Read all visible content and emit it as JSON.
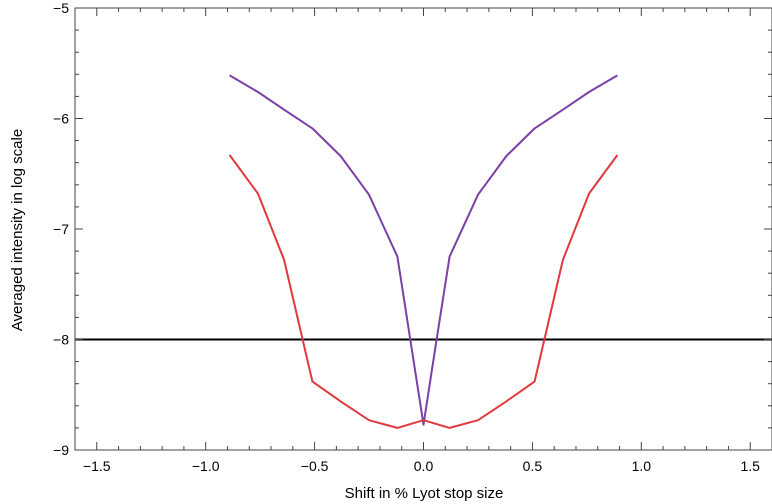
{
  "chart_data": {
    "type": "line",
    "title": "",
    "xlabel": "Shift in % Lyot stop size",
    "ylabel": "Averaged intensity in log scale",
    "xlim": [
      -1.6,
      1.6
    ],
    "ylim": [
      -9,
      -5
    ],
    "grid": false,
    "legend": "none",
    "x_ticks": [
      {
        "value": -1.5,
        "label": "−1.5"
      },
      {
        "value": -1.0,
        "label": "−1.0"
      },
      {
        "value": -0.5,
        "label": "−0.5"
      },
      {
        "value": 0.0,
        "label": "0.0"
      },
      {
        "value": 0.5,
        "label": "0.5"
      },
      {
        "value": 1.0,
        "label": "1.0"
      },
      {
        "value": 1.5,
        "label": "1.5"
      }
    ],
    "y_ticks": [
      {
        "value": -5,
        "label": "−5"
      },
      {
        "value": -6,
        "label": "−6"
      },
      {
        "value": -7,
        "label": "−7"
      },
      {
        "value": -8,
        "label": "−8"
      },
      {
        "value": -9,
        "label": "−9"
      }
    ],
    "series": [
      {
        "color": "#7b3fa6",
        "x": [
          -0.89,
          -0.76,
          -0.64,
          -0.51,
          -0.38,
          -0.25,
          -0.12,
          0.0,
          0.06,
          0.12,
          0.25,
          0.38,
          0.51,
          0.64,
          0.76,
          0.89
        ],
        "y": [
          -5.61,
          -5.76,
          -5.92,
          -6.09,
          -6.34,
          -6.69,
          -7.25,
          -8.77,
          -8.0,
          -7.25,
          -6.69,
          -6.34,
          -6.09,
          -5.92,
          -5.76,
          -5.61
        ]
      },
      {
        "color": "#e0393e",
        "x": [
          -0.89,
          -0.76,
          -0.64,
          -0.51,
          -0.38,
          -0.25,
          -0.12,
          0.0,
          0.12,
          0.25,
          0.38,
          0.51,
          0.64,
          0.76,
          0.89
        ],
        "y": [
          -6.33,
          -6.68,
          -7.28,
          -8.38,
          -8.56,
          -8.73,
          -8.8,
          -8.73,
          -8.8,
          -8.73,
          -8.56,
          -8.38,
          -7.28,
          -6.68,
          -6.33
        ]
      }
    ],
    "reference_line": {
      "y": -8,
      "color": "#000000"
    }
  }
}
